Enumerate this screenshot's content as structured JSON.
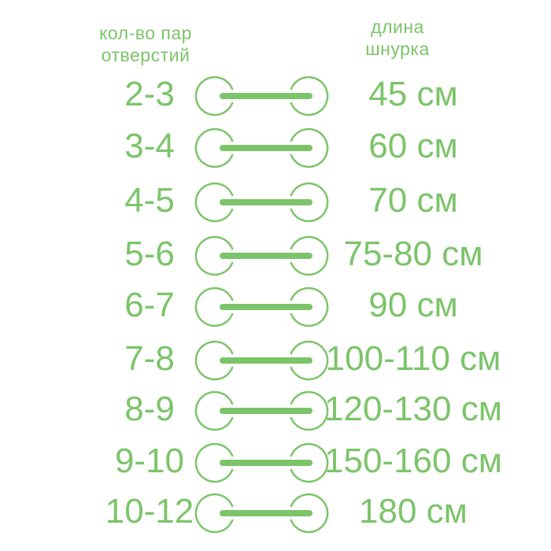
{
  "headers": {
    "left": [
      "кол-во пар",
      "отверстий"
    ],
    "right": [
      "длина",
      "шнурка"
    ]
  },
  "color": "#7cc46a",
  "rows": [
    {
      "holes": "2-3",
      "length": "45 см"
    },
    {
      "holes": "3-4",
      "length": "60 см"
    },
    {
      "holes": "4-5",
      "length": "70 см"
    },
    {
      "holes": "5-6",
      "length": "75-80 см"
    },
    {
      "holes": "6-7",
      "length": "90 см"
    },
    {
      "holes": "7-8",
      "length": "100-110 см"
    },
    {
      "holes": "8-9",
      "length": "120-130 см"
    },
    {
      "holes": "9-10",
      "length": "150-160 см"
    },
    {
      "holes": "10-12",
      "length": "180 см"
    }
  ]
}
